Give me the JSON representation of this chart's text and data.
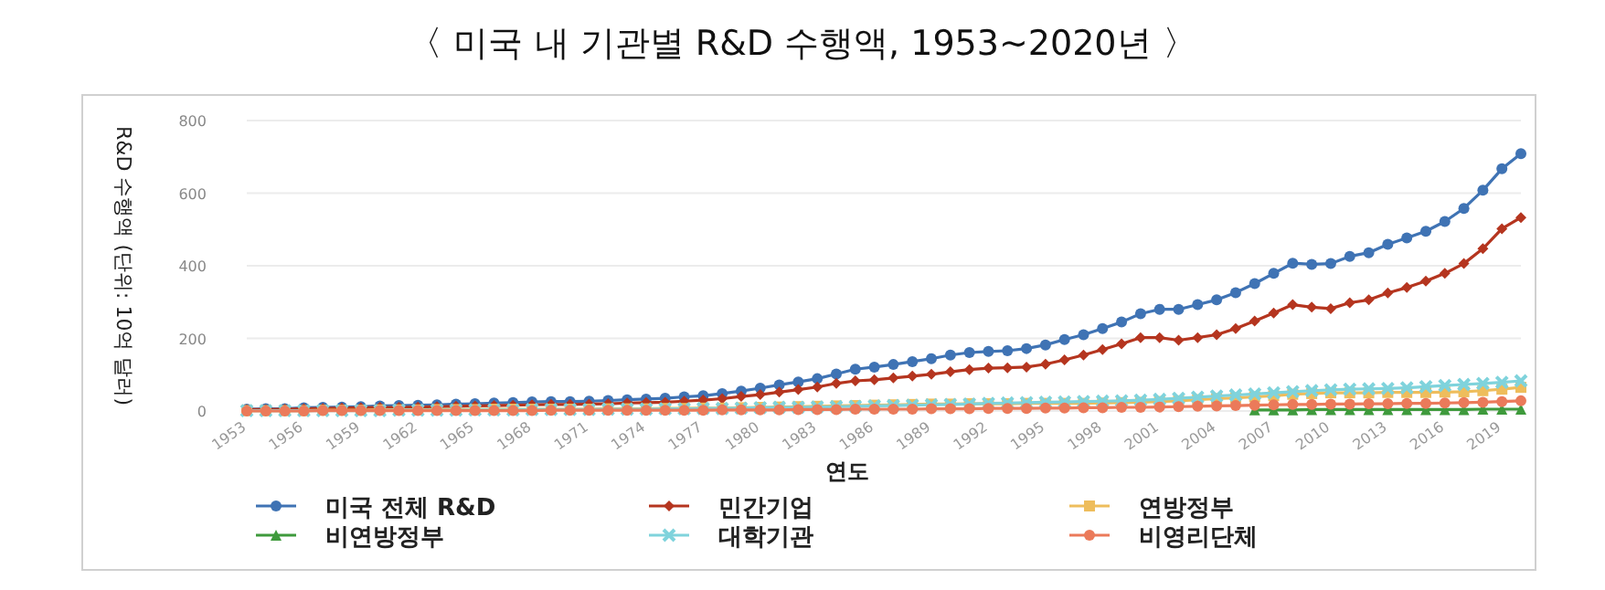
{
  "chart_data": {
    "type": "line",
    "title": "〈 미국 내 기관별 R&D 수행액, 1953~2020년 〉",
    "xlabel": "연도",
    "ylabel": "R&D 수행액 (단위: 10억 달러)",
    "x": [
      1953,
      1954,
      1955,
      1956,
      1957,
      1958,
      1959,
      1960,
      1961,
      1962,
      1963,
      1964,
      1965,
      1966,
      1967,
      1968,
      1969,
      1970,
      1971,
      1972,
      1973,
      1974,
      1975,
      1976,
      1977,
      1978,
      1979,
      1980,
      1981,
      1982,
      1983,
      1984,
      1985,
      1986,
      1987,
      1988,
      1989,
      1990,
      1991,
      1992,
      1993,
      1994,
      1995,
      1996,
      1997,
      1998,
      1999,
      2000,
      2001,
      2002,
      2003,
      2004,
      2005,
      2006,
      2007,
      2008,
      2009,
      2010,
      2011,
      2012,
      2013,
      2014,
      2015,
      2016,
      2017,
      2018,
      2019,
      2020
    ],
    "xlim": [
      1953,
      2020
    ],
    "xticks": [
      1953,
      1956,
      1959,
      1962,
      1965,
      1968,
      1971,
      1974,
      1977,
      1980,
      1983,
      1986,
      1989,
      1992,
      1995,
      1998,
      2001,
      2004,
      2007,
      2010,
      2013,
      2016,
      2019
    ],
    "ylim": [
      0,
      800
    ],
    "yticks": [
      0,
      200,
      400,
      600,
      800
    ],
    "grid": "y",
    "legend": "bottom",
    "line_style": "solid",
    "series": [
      {
        "name": "미국 전체 R&D",
        "color": "#3f73b4",
        "marker": "circle",
        "values": [
          5,
          6,
          6,
          9,
          10,
          11,
          12,
          14,
          15,
          16,
          17,
          19,
          20,
          22,
          23,
          25,
          26,
          26,
          27,
          29,
          31,
          33,
          35,
          39,
          42,
          48,
          55,
          63,
          72,
          80,
          89,
          102,
          115,
          121,
          128,
          136,
          144,
          154,
          161,
          164,
          166,
          172,
          182,
          197,
          210,
          227,
          245,
          268,
          280,
          280,
          293,
          306,
          326,
          351,
          379,
          407,
          404,
          406,
          426,
          436,
          459,
          477,
          495,
          522,
          558,
          608,
          667,
          709
        ]
      },
      {
        "name": "민간기업",
        "color": "#b5351f",
        "marker": "diamond",
        "values": [
          4,
          4,
          5,
          6,
          7,
          8,
          9,
          10,
          10,
          11,
          12,
          13,
          14,
          15,
          16,
          17,
          18,
          18,
          19,
          20,
          22,
          23,
          24,
          27,
          30,
          34,
          40,
          45,
          52,
          59,
          66,
          76,
          83,
          86,
          91,
          96,
          101,
          108,
          114,
          118,
          119,
          121,
          129,
          141,
          154,
          169,
          185,
          202,
          202,
          195,
          202,
          210,
          227,
          248,
          270,
          293,
          286,
          282,
          298,
          306,
          325,
          340,
          358,
          379,
          406,
          447,
          502,
          533
        ]
      },
      {
        "name": "연방정부",
        "color": "#eebd5c",
        "marker": "square",
        "values": [
          1,
          1,
          1,
          1,
          2,
          2,
          2,
          3,
          3,
          3,
          4,
          4,
          4,
          5,
          5,
          5,
          5,
          5,
          5,
          6,
          6,
          6,
          7,
          7,
          8,
          8,
          9,
          10,
          11,
          12,
          13,
          14,
          15,
          16,
          17,
          18,
          19,
          19,
          20,
          20,
          20,
          21,
          21,
          21,
          21,
          22,
          23,
          24,
          26,
          28,
          31,
          34,
          36,
          39,
          42,
          46,
          48,
          50,
          50,
          50,
          51,
          51,
          51,
          52,
          53,
          56,
          60,
          65
        ]
      },
      {
        "name": "비연방정부",
        "color": "#3e9a3c",
        "marker": "triangle",
        "x": [
          2006,
          2007,
          2008,
          2009,
          2010,
          2011,
          2012,
          2013,
          2014,
          2015,
          2016,
          2017,
          2018,
          2019,
          2020
        ],
        "values": [
          3,
          3,
          3,
          4,
          4,
          4,
          4,
          4,
          4,
          4,
          4,
          4,
          5,
          5,
          5
        ]
      },
      {
        "name": "대학기관",
        "color": "#7fd3dc",
        "marker": "cross",
        "values": [
          1,
          1,
          1,
          1,
          1,
          1,
          1,
          1,
          2,
          2,
          2,
          2,
          3,
          3,
          3,
          4,
          4,
          4,
          4,
          5,
          5,
          5,
          6,
          6,
          7,
          7,
          8,
          9,
          10,
          10,
          11,
          12,
          13,
          14,
          15,
          16,
          17,
          18,
          19,
          21,
          22,
          23,
          24,
          25,
          26,
          27,
          28,
          30,
          32,
          35,
          38,
          41,
          44,
          47,
          50,
          53,
          56,
          58,
          60,
          61,
          62,
          64,
          67,
          70,
          73,
          76,
          79,
          83
        ]
      },
      {
        "name": "비영리단체",
        "color": "#eb7a5a",
        "marker": "circle",
        "values": [
          0,
          0,
          0,
          0,
          1,
          1,
          1,
          1,
          1,
          1,
          1,
          1,
          1,
          1,
          1,
          1,
          2,
          2,
          2,
          2,
          2,
          2,
          2,
          2,
          2,
          3,
          3,
          3,
          3,
          4,
          4,
          4,
          5,
          5,
          5,
          5,
          6,
          6,
          6,
          7,
          7,
          7,
          8,
          8,
          9,
          9,
          10,
          10,
          11,
          12,
          13,
          14,
          15,
          16,
          17,
          18,
          18,
          19,
          19,
          20,
          20,
          21,
          21,
          22,
          23,
          24,
          26,
          28
        ]
      }
    ]
  }
}
